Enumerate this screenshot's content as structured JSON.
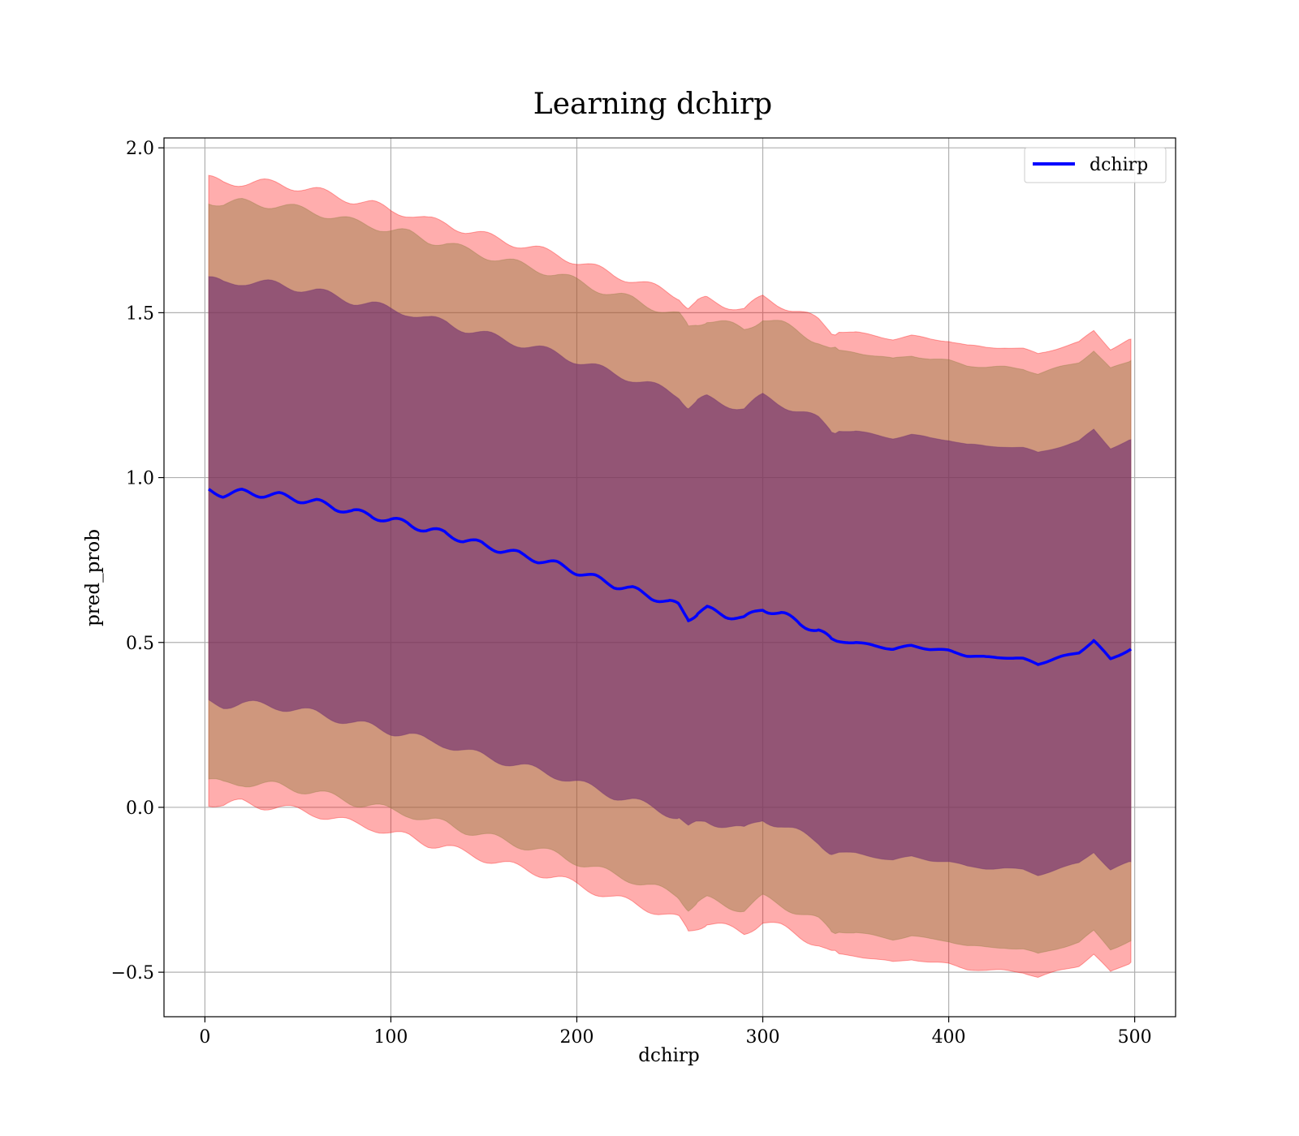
{
  "chart_data": {
    "type": "line",
    "title": "Learning dchirp",
    "xlabel": "dchirp",
    "ylabel": "pred_prob",
    "xlim": [
      -22,
      522
    ],
    "ylim": [
      -0.635,
      2.03
    ],
    "xticks": [
      0,
      100,
      200,
      300,
      400,
      500
    ],
    "xtick_labels": [
      "0",
      "100",
      "200",
      "300",
      "400",
      "500"
    ],
    "yticks": [
      -0.5,
      0.0,
      0.5,
      1.0,
      1.5,
      2.0
    ],
    "ytick_labels": [
      "−0.5",
      "0.0",
      "0.5",
      "1.0",
      "1.5",
      "2.0"
    ],
    "grid": true,
    "legend": {
      "position": "top-right",
      "entries": [
        {
          "label": "dchirp",
          "color": "#0000ff"
        }
      ]
    },
    "mean_series": {
      "name": "dchirp",
      "color": "#0000ff",
      "x": [
        2,
        10,
        20,
        30,
        40,
        50,
        60,
        70,
        80,
        90,
        100,
        110,
        120,
        130,
        140,
        150,
        160,
        170,
        180,
        190,
        200,
        210,
        220,
        230,
        240,
        250,
        255,
        260,
        265,
        270,
        280,
        290,
        300,
        310,
        320,
        330,
        337,
        350,
        360,
        370,
        380,
        390,
        400,
        410,
        420,
        430,
        440,
        448,
        460,
        470,
        478,
        487,
        498
      ],
      "y": [
        0.96,
        0.95,
        0.955,
        0.95,
        0.945,
        0.935,
        0.925,
        0.91,
        0.895,
        0.885,
        0.87,
        0.86,
        0.84,
        0.83,
        0.81,
        0.795,
        0.78,
        0.765,
        0.75,
        0.735,
        0.715,
        0.695,
        0.675,
        0.66,
        0.64,
        0.62,
        0.61,
        0.575,
        0.59,
        0.6,
        0.585,
        0.57,
        0.605,
        0.585,
        0.56,
        0.535,
        0.505,
        0.5,
        0.49,
        0.48,
        0.49,
        0.48,
        0.475,
        0.46,
        0.455,
        0.455,
        0.45,
        0.435,
        0.455,
        0.47,
        0.505,
        0.45,
        0.48
      ]
    },
    "bands": [
      {
        "name": "band_outer",
        "color": "#ff0000",
        "opacity": 0.32,
        "x": [
          2,
          10,
          20,
          30,
          40,
          50,
          60,
          70,
          80,
          90,
          100,
          110,
          120,
          130,
          140,
          150,
          160,
          170,
          180,
          190,
          200,
          210,
          220,
          230,
          240,
          250,
          255,
          260,
          265,
          270,
          280,
          290,
          300,
          310,
          320,
          330,
          337,
          350,
          360,
          370,
          380,
          390,
          400,
          410,
          420,
          430,
          440,
          448,
          460,
          470,
          478,
          487,
          498
        ],
        "upper": [
          1.905,
          1.895,
          1.895,
          1.895,
          1.89,
          1.88,
          1.87,
          1.855,
          1.84,
          1.83,
          1.81,
          1.8,
          1.78,
          1.77,
          1.75,
          1.735,
          1.72,
          1.705,
          1.69,
          1.675,
          1.655,
          1.635,
          1.615,
          1.6,
          1.58,
          1.56,
          1.55,
          1.515,
          1.53,
          1.54,
          1.525,
          1.51,
          1.545,
          1.525,
          1.5,
          1.475,
          1.445,
          1.44,
          1.43,
          1.42,
          1.43,
          1.42,
          1.415,
          1.4,
          1.395,
          1.395,
          1.39,
          1.375,
          1.395,
          1.41,
          1.445,
          1.39,
          1.42
        ],
        "lower": [
          0.015,
          0.005,
          0.015,
          0.005,
          0.0,
          -0.01,
          -0.02,
          -0.035,
          -0.05,
          -0.06,
          -0.08,
          -0.09,
          -0.11,
          -0.12,
          -0.14,
          -0.155,
          -0.17,
          -0.185,
          -0.2,
          -0.215,
          -0.235,
          -0.255,
          -0.275,
          -0.29,
          -0.31,
          -0.33,
          -0.34,
          -0.375,
          -0.36,
          -0.35,
          -0.365,
          -0.38,
          -0.345,
          -0.365,
          -0.39,
          -0.415,
          -0.445,
          -0.45,
          -0.46,
          -0.47,
          -0.46,
          -0.47,
          -0.475,
          -0.49,
          -0.495,
          -0.495,
          -0.5,
          -0.515,
          -0.495,
          -0.48,
          -0.445,
          -0.5,
          -0.47
        ]
      },
      {
        "name": "band_middle",
        "color": "#8c7a3c",
        "opacity": 0.42,
        "x": [
          2,
          10,
          20,
          30,
          40,
          50,
          60,
          70,
          80,
          90,
          100,
          110,
          120,
          130,
          140,
          150,
          160,
          170,
          180,
          190,
          200,
          210,
          220,
          230,
          240,
          250,
          255,
          260,
          265,
          270,
          280,
          290,
          300,
          310,
          320,
          330,
          337,
          350,
          360,
          370,
          380,
          390,
          400,
          410,
          420,
          430,
          440,
          448,
          460,
          470,
          478,
          487,
          498
        ],
        "upper": [
          1.84,
          1.83,
          1.835,
          1.83,
          1.825,
          1.815,
          1.805,
          1.79,
          1.775,
          1.765,
          1.75,
          1.74,
          1.72,
          1.71,
          1.69,
          1.675,
          1.66,
          1.645,
          1.63,
          1.615,
          1.595,
          1.575,
          1.555,
          1.54,
          1.52,
          1.5,
          1.49,
          1.455,
          1.47,
          1.48,
          1.465,
          1.45,
          1.485,
          1.465,
          1.44,
          1.415,
          1.385,
          1.38,
          1.37,
          1.36,
          1.37,
          1.36,
          1.355,
          1.34,
          1.335,
          1.335,
          1.33,
          1.315,
          1.335,
          1.35,
          1.385,
          1.33,
          1.355
        ],
        "lower": [
          0.08,
          0.07,
          0.075,
          0.07,
          0.065,
          0.055,
          0.045,
          0.03,
          0.015,
          0.005,
          -0.01,
          -0.02,
          -0.04,
          -0.05,
          -0.07,
          -0.085,
          -0.1,
          -0.115,
          -0.13,
          -0.145,
          -0.165,
          -0.185,
          -0.205,
          -0.22,
          -0.24,
          -0.26,
          -0.27,
          -0.305,
          -0.29,
          -0.28,
          -0.295,
          -0.31,
          -0.275,
          -0.295,
          -0.32,
          -0.345,
          -0.375,
          -0.38,
          -0.39,
          -0.4,
          -0.39,
          -0.4,
          -0.405,
          -0.42,
          -0.425,
          -0.425,
          -0.43,
          -0.445,
          -0.425,
          -0.41,
          -0.375,
          -0.43,
          -0.405
        ]
      },
      {
        "name": "band_inner",
        "color": "#6a2a6f",
        "opacity": 0.6,
        "x": [
          2,
          10,
          20,
          30,
          40,
          50,
          60,
          70,
          80,
          90,
          100,
          110,
          120,
          130,
          140,
          150,
          160,
          170,
          180,
          190,
          200,
          210,
          220,
          230,
          240,
          250,
          255,
          260,
          265,
          270,
          280,
          290,
          300,
          310,
          320,
          330,
          337,
          350,
          360,
          370,
          380,
          390,
          400,
          410,
          420,
          430,
          440,
          448,
          460,
          470,
          478,
          487,
          498
        ],
        "upper": [
          1.6,
          1.59,
          1.595,
          1.59,
          1.585,
          1.575,
          1.565,
          1.55,
          1.535,
          1.525,
          1.51,
          1.5,
          1.48,
          1.47,
          1.45,
          1.435,
          1.42,
          1.405,
          1.39,
          1.375,
          1.355,
          1.335,
          1.315,
          1.3,
          1.28,
          1.26,
          1.25,
          1.215,
          1.23,
          1.24,
          1.225,
          1.21,
          1.245,
          1.225,
          1.2,
          1.175,
          1.145,
          1.14,
          1.13,
          1.12,
          1.13,
          1.12,
          1.115,
          1.1,
          1.095,
          1.095,
          1.09,
          1.075,
          1.095,
          1.11,
          1.145,
          1.09,
          1.115
        ],
        "lower": [
          0.32,
          0.31,
          0.315,
          0.31,
          0.305,
          0.295,
          0.285,
          0.27,
          0.255,
          0.245,
          0.23,
          0.22,
          0.2,
          0.19,
          0.17,
          0.155,
          0.14,
          0.125,
          0.11,
          0.095,
          0.075,
          0.055,
          0.035,
          0.02,
          0.0,
          -0.02,
          -0.03,
          -0.065,
          -0.05,
          -0.04,
          -0.055,
          -0.07,
          -0.035,
          -0.055,
          -0.08,
          -0.105,
          -0.135,
          -0.14,
          -0.15,
          -0.16,
          -0.15,
          -0.16,
          -0.165,
          -0.18,
          -0.185,
          -0.185,
          -0.19,
          -0.205,
          -0.185,
          -0.17,
          -0.135,
          -0.19,
          -0.165
        ]
      }
    ]
  }
}
